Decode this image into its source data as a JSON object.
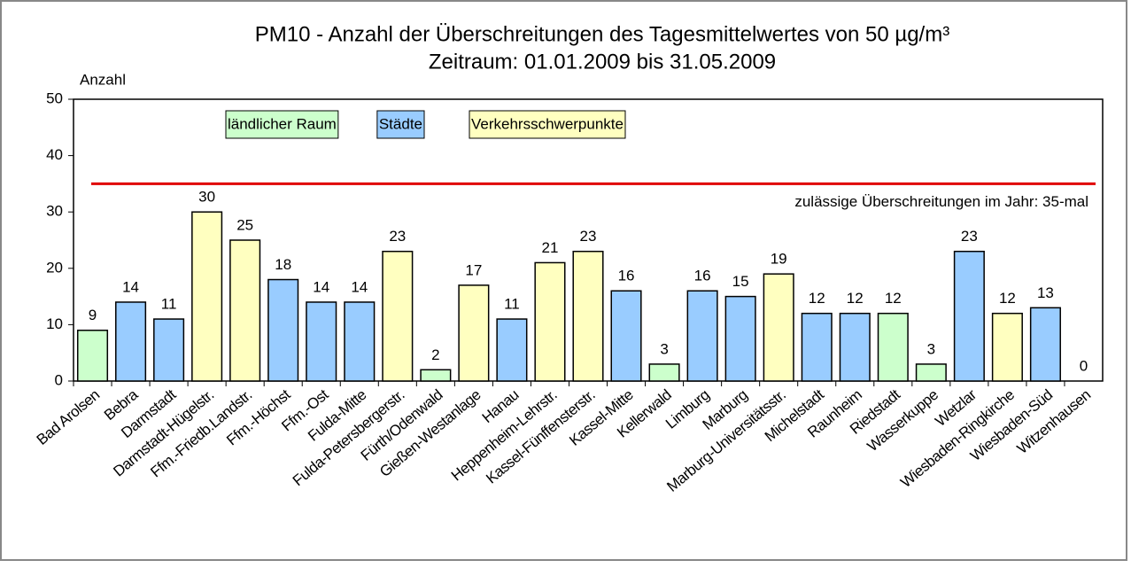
{
  "chart_data": {
    "type": "bar",
    "title": "PM10 - Anzahl der Überschreitungen des Tagesmittelwertes von 50 µg/m³",
    "subtitle": "Zeitraum: 01.01.2009 bis 31.05.2009",
    "y_label": "Anzahl",
    "categories": [
      "Bad Arolsen",
      "Bebra",
      "Darmstadt",
      "Darmstadt-Hügelstr.",
      "Ffm.-Friedb.Landstr.",
      "Ffm.-Höchst",
      "Ffm.-Ost",
      "Fulda-Mitte",
      "Fulda-Petersbergerstr.",
      "Fürth/Odenwald",
      "Gießen-Westanlage",
      "Hanau",
      "Heppenheim-Lehrstr.",
      "Kassel-Fünffensterstr.",
      "Kassel-Mitte",
      "Kellerwald",
      "Limburg",
      "Marburg",
      "Marburg-Universitätsstr.",
      "Michelstadt",
      "Raunheim",
      "Riedstadt",
      "Wasserkuppe",
      "Wetzlar",
      "Wiesbaden-Ringkirche",
      "Wiesbaden-Süd",
      "Witzenhausen"
    ],
    "values": [
      9,
      14,
      11,
      30,
      25,
      18,
      14,
      14,
      23,
      2,
      17,
      11,
      21,
      23,
      16,
      3,
      16,
      15,
      19,
      12,
      12,
      12,
      3,
      23,
      12,
      13,
      0
    ],
    "colors": [
      "#ccffcc",
      "#99ccff",
      "#99ccff",
      "#ffffc0",
      "#ffffc0",
      "#99ccff",
      "#99ccff",
      "#99ccff",
      "#ffffc0",
      "#ccffcc",
      "#ffffc0",
      "#99ccff",
      "#ffffc0",
      "#ffffc0",
      "#99ccff",
      "#ccffcc",
      "#99ccff",
      "#99ccff",
      "#ffffc0",
      "#99ccff",
      "#99ccff",
      "#ccffcc",
      "#ccffcc",
      "#99ccff",
      "#ffffc0",
      "#99ccff",
      "#ccffcc"
    ],
    "legend": [
      {
        "name": "ländlicher Raum",
        "color": "#ccffcc"
      },
      {
        "name": "Städte",
        "color": "#99ccff"
      },
      {
        "name": "Verkehrsschwerpunkte",
        "color": "#ffffc0"
      }
    ],
    "threshold": {
      "value": 35,
      "label": "zulässige Überschreitungen im Jahr: 35-mal",
      "color": "#e00000"
    },
    "ylim": [
      0,
      50
    ],
    "yticks": [
      0,
      10,
      20,
      30,
      40,
      50
    ],
    "grid": false
  }
}
